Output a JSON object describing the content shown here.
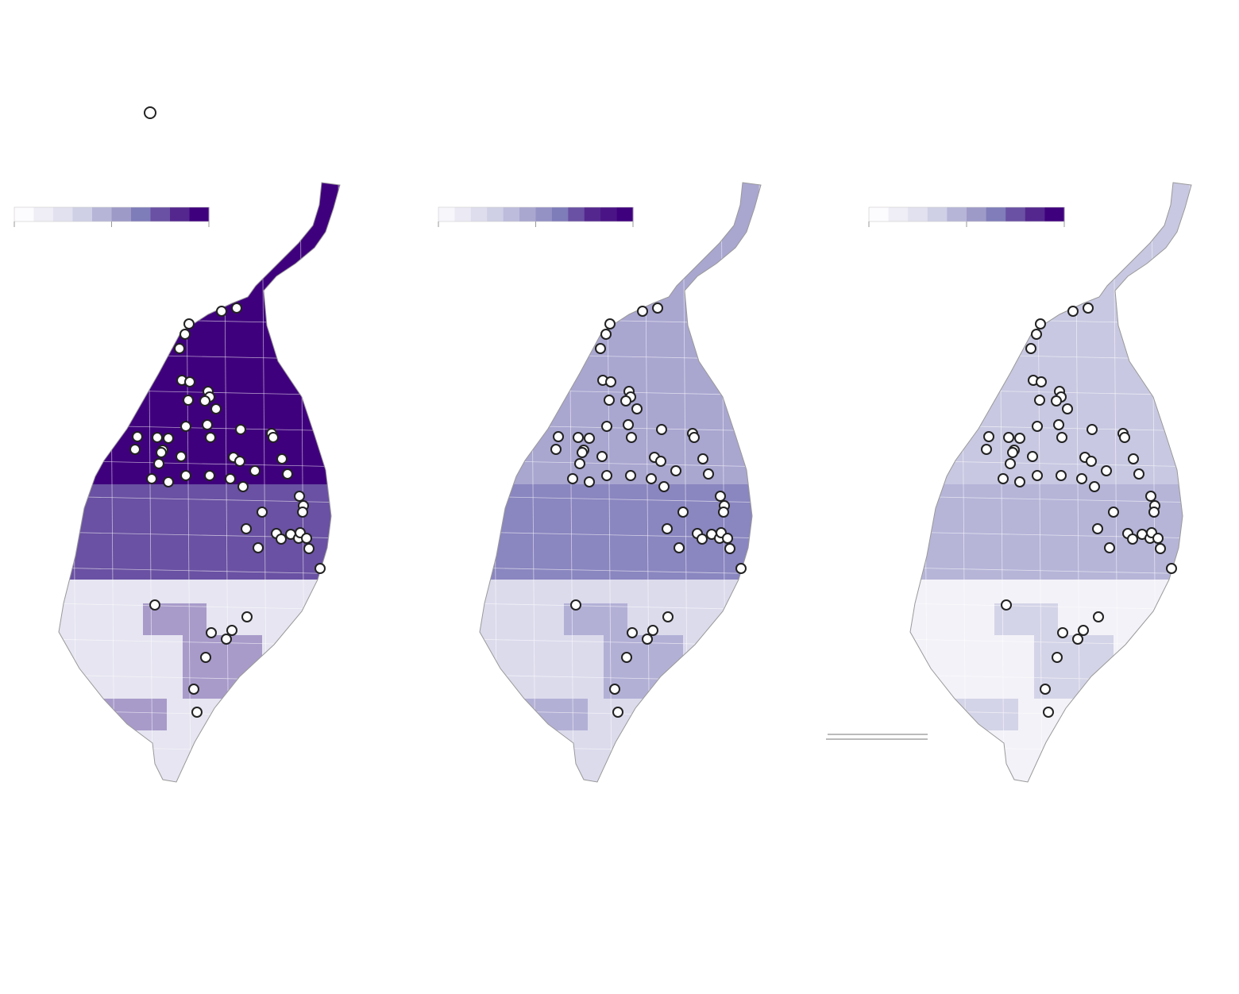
{
  "maps": [
    {
      "legend_colors": [
        "#fcfbfd",
        "#efedf5",
        "#e2e1ef",
        "#cfcfe6",
        "#b6b5d8",
        "#9e9ac8",
        "#7f7cba",
        "#6a51a3",
        "#54278f",
        "#3f007d"
      ],
      "fills": [
        "#3f007d",
        "#6a51a3",
        "#e6e5f1"
      ]
    },
    {
      "legend_colors": [
        "#f7f6fb",
        "#ebeaf4",
        "#dedded",
        "#cfcfe5",
        "#bdbcdc",
        "#a9a6d0",
        "#9491c5",
        "#7f7cba",
        "#6a51a3",
        "#54278f",
        "#4a1486",
        "#3f007d"
      ],
      "fills": [
        "#a9a6d0",
        "#8a86c0",
        "#dcdbec"
      ]
    },
    {
      "legend_colors": [
        "#fcfbfd",
        "#efedf5",
        "#e2e1ef",
        "#cfcfe6",
        "#b6b5d8",
        "#9e9ac8",
        "#807dba",
        "#6a51a3",
        "#54278f",
        "#3f007d"
      ],
      "fills": [
        "#c8c8e2",
        "#b6b5d8",
        "#f3f2f8"
      ]
    }
  ]
}
